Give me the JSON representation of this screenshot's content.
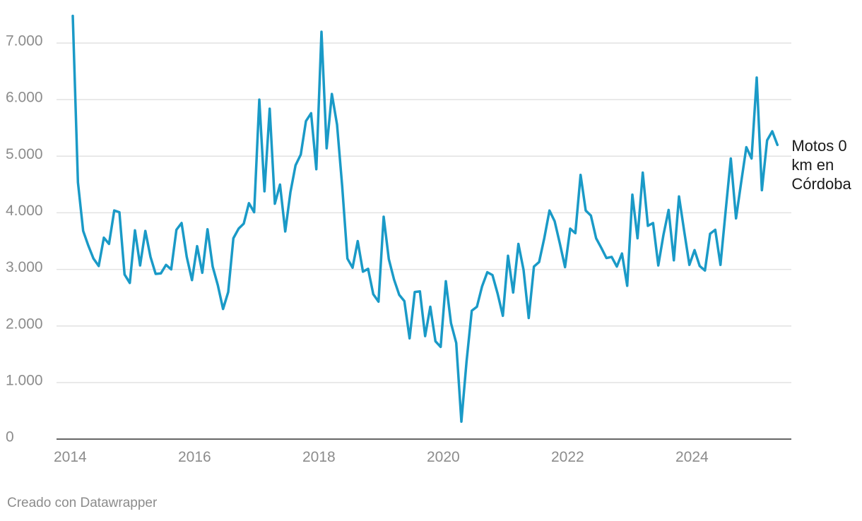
{
  "chart_data": {
    "type": "line",
    "title": "",
    "xlabel": "",
    "ylabel": "",
    "ylim": [
      0,
      7500
    ],
    "xlim": [
      "2014-01",
      "2025-05"
    ],
    "grid": true,
    "legend": "direct-label-right",
    "yticks": [
      {
        "value": 0,
        "label": "0"
      },
      {
        "value": 1000,
        "label": "1.000"
      },
      {
        "value": 2000,
        "label": "2.000"
      },
      {
        "value": 3000,
        "label": "3.000"
      },
      {
        "value": 4000,
        "label": "4.000"
      },
      {
        "value": 5000,
        "label": "5.000"
      },
      {
        "value": 6000,
        "label": "6.000"
      },
      {
        "value": 7000,
        "label": "7.000"
      }
    ],
    "xticks": [
      {
        "value": "2014-01",
        "label": "2014"
      },
      {
        "value": "2016-01",
        "label": "2016"
      },
      {
        "value": "2018-01",
        "label": "2018"
      },
      {
        "value": "2020-01",
        "label": "2020"
      },
      {
        "value": "2022-01",
        "label": "2022"
      },
      {
        "value": "2024-01",
        "label": "2024"
      }
    ],
    "series": [
      {
        "name": "Motos 0 km en Córdoba",
        "color": "#1a9ac7",
        "x": [
          "2014-01",
          "2014-02",
          "2014-03",
          "2014-04",
          "2014-05",
          "2014-06",
          "2014-07",
          "2014-08",
          "2014-09",
          "2014-10",
          "2014-11",
          "2014-12",
          "2015-01",
          "2015-02",
          "2015-03",
          "2015-04",
          "2015-05",
          "2015-06",
          "2015-07",
          "2015-08",
          "2015-09",
          "2015-10",
          "2015-11",
          "2015-12",
          "2016-01",
          "2016-02",
          "2016-03",
          "2016-04",
          "2016-05",
          "2016-06",
          "2016-07",
          "2016-08",
          "2016-09",
          "2016-10",
          "2016-11",
          "2016-12",
          "2017-01",
          "2017-02",
          "2017-03",
          "2017-04",
          "2017-05",
          "2017-06",
          "2017-07",
          "2017-08",
          "2017-09",
          "2017-10",
          "2017-11",
          "2017-12",
          "2018-01",
          "2018-02",
          "2018-03",
          "2018-04",
          "2018-05",
          "2018-06",
          "2018-07",
          "2018-08",
          "2018-09",
          "2018-10",
          "2018-11",
          "2018-12",
          "2019-01",
          "2019-02",
          "2019-03",
          "2019-04",
          "2019-05",
          "2019-06",
          "2019-07",
          "2019-08",
          "2019-09",
          "2019-10",
          "2019-11",
          "2019-12",
          "2020-01",
          "2020-02",
          "2020-03",
          "2020-04",
          "2020-05",
          "2020-06",
          "2020-07",
          "2020-08",
          "2020-09",
          "2020-10",
          "2020-11",
          "2020-12",
          "2021-01",
          "2021-02",
          "2021-03",
          "2021-04",
          "2021-05",
          "2021-06",
          "2021-07",
          "2021-08",
          "2021-09",
          "2021-10",
          "2021-11",
          "2021-12",
          "2022-01",
          "2022-02",
          "2022-03",
          "2022-04",
          "2022-05",
          "2022-06",
          "2022-07",
          "2022-08",
          "2022-09",
          "2022-10",
          "2022-11",
          "2022-12",
          "2023-01",
          "2023-02",
          "2023-03",
          "2023-04",
          "2023-05",
          "2023-06",
          "2023-07",
          "2023-08",
          "2023-09",
          "2023-10",
          "2023-11",
          "2023-12",
          "2024-01",
          "2024-02",
          "2024-03",
          "2024-04",
          "2024-05",
          "2024-06",
          "2024-07",
          "2024-08",
          "2024-09",
          "2024-10",
          "2024-11",
          "2024-12",
          "2025-01",
          "2025-02",
          "2025-03",
          "2025-04",
          "2025-05"
        ],
        "values": [
          7480,
          4540,
          3680,
          3420,
          3190,
          3060,
          3560,
          3450,
          4040,
          4010,
          2910,
          2760,
          3690,
          3070,
          3680,
          3220,
          2920,
          2930,
          3080,
          3000,
          3700,
          3820,
          3220,
          2810,
          3410,
          2940,
          3710,
          3050,
          2720,
          2300,
          2600,
          3550,
          3720,
          3810,
          4170,
          4010,
          6000,
          4380,
          5840,
          4160,
          4500,
          3670,
          4360,
          4840,
          5030,
          5620,
          5760,
          4770,
          7200,
          5140,
          6100,
          5560,
          4470,
          3190,
          3030,
          3500,
          2960,
          3010,
          2560,
          2430,
          3930,
          3180,
          2820,
          2550,
          2440,
          1780,
          2600,
          2610,
          1820,
          2340,
          1730,
          1630,
          2790,
          2050,
          1700,
          310,
          1370,
          2270,
          2340,
          2700,
          2950,
          2900,
          2570,
          2180,
          3240,
          2590,
          3450,
          2990,
          2140,
          3050,
          3130,
          3550,
          4040,
          3850,
          3460,
          3040,
          3720,
          3640,
          4670,
          4040,
          3950,
          3550,
          3380,
          3200,
          3220,
          3050,
          3280,
          2710,
          4320,
          3550,
          4710,
          3770,
          3820,
          3070,
          3610,
          4050,
          3160,
          4290,
          3680,
          3080,
          3340,
          3060,
          2980,
          3630,
          3700,
          3080,
          4030,
          4960,
          3900,
          4540,
          5160,
          4960,
          6390,
          4400,
          5280,
          5440,
          5200
        ]
      }
    ]
  },
  "credit": "Creado con Datawrapper"
}
